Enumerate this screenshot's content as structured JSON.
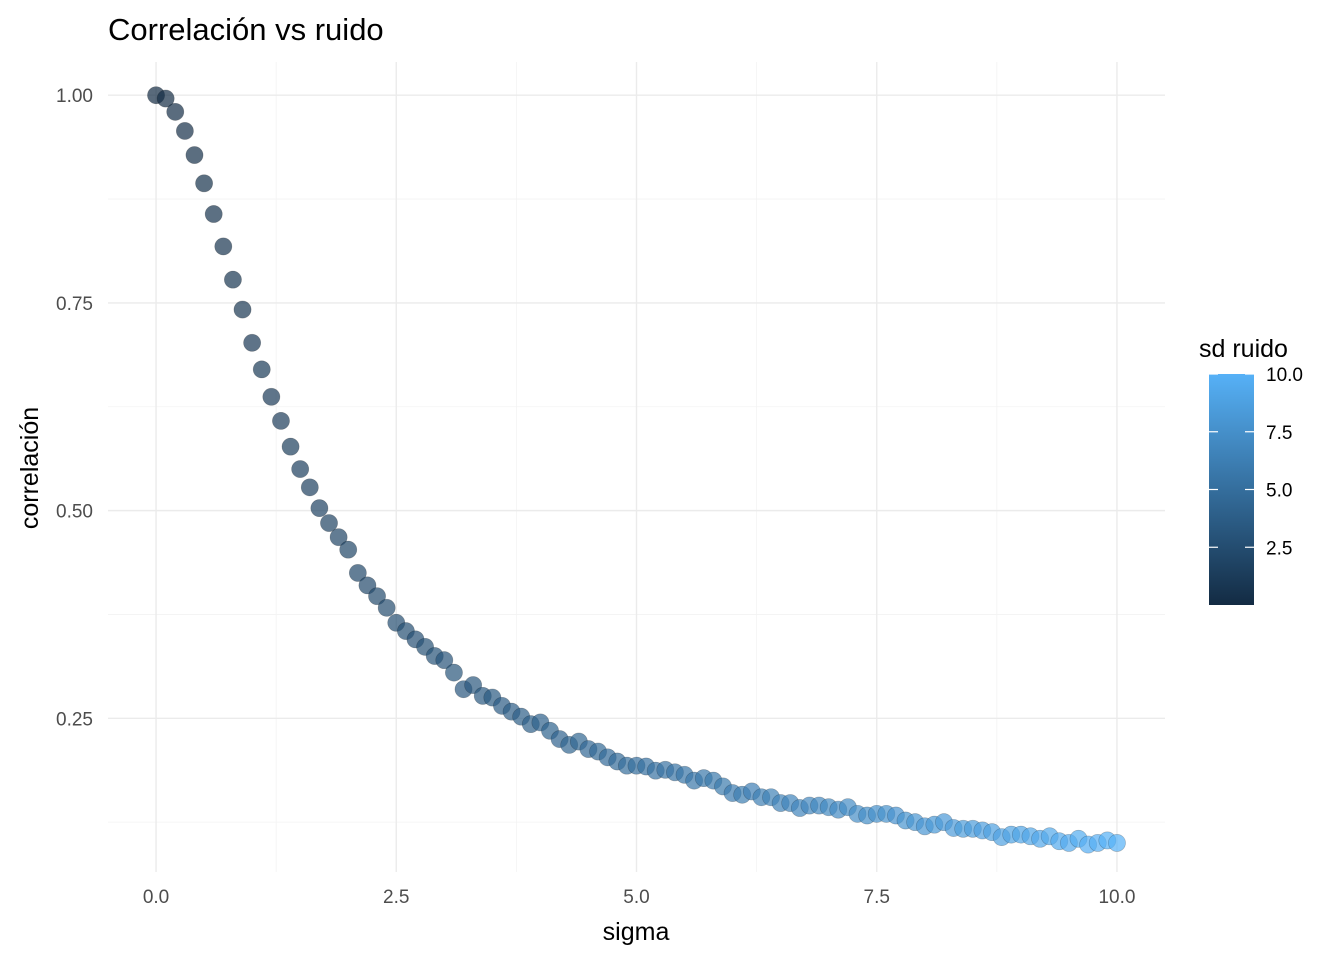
{
  "chart_data": {
    "type": "scatter",
    "title": "Correlación vs ruido",
    "xlabel": "sigma",
    "ylabel": "correlación",
    "xlim": [
      -0.5,
      10.5
    ],
    "ylim": [
      0.065,
      1.04
    ],
    "x_ticks": [
      0.0,
      2.5,
      5.0,
      7.5,
      10.0
    ],
    "x_tick_labels": [
      "0.0",
      "2.5",
      "5.0",
      "7.5",
      "10.0"
    ],
    "y_ticks": [
      0.25,
      0.5,
      0.75,
      1.0
    ],
    "y_tick_labels": [
      "0.25",
      "0.50",
      "0.75",
      "1.00"
    ],
    "grid": true,
    "legend": {
      "title": "sd ruido",
      "placement": "right",
      "type": "colorbar",
      "range": [
        0.0,
        10.0
      ],
      "ticks": [
        2.5,
        5.0,
        7.5,
        10.0
      ],
      "tick_labels": [
        "2.5",
        "5.0",
        "7.5",
        "10.0"
      ],
      "color_low": "#132B43",
      "color_high": "#56B1F7"
    },
    "point_alpha": 0.7,
    "x": [
      0.0,
      0.1,
      0.2,
      0.3,
      0.4,
      0.5,
      0.6,
      0.7,
      0.8,
      0.9,
      1.0,
      1.1,
      1.2,
      1.3,
      1.4,
      1.5,
      1.6,
      1.7,
      1.8,
      1.9,
      2.0,
      2.1,
      2.2,
      2.3,
      2.4,
      2.5,
      2.6,
      2.7,
      2.8,
      2.9,
      3.0,
      3.1,
      3.2,
      3.3,
      3.4,
      3.5,
      3.6,
      3.7,
      3.8,
      3.9,
      4.0,
      4.1,
      4.2,
      4.3,
      4.4,
      4.5,
      4.6,
      4.7,
      4.8,
      4.9,
      5.0,
      5.1,
      5.2,
      5.3,
      5.4,
      5.5,
      5.6,
      5.7,
      5.8,
      5.9,
      6.0,
      6.1,
      6.2,
      6.3,
      6.4,
      6.5,
      6.6,
      6.7,
      6.8,
      6.9,
      7.0,
      7.1,
      7.2,
      7.3,
      7.4,
      7.5,
      7.6,
      7.7,
      7.8,
      7.9,
      8.0,
      8.1,
      8.2,
      8.3,
      8.4,
      8.5,
      8.6,
      8.7,
      8.8,
      8.9,
      9.0,
      9.1,
      9.2,
      9.3,
      9.4,
      9.5,
      9.6,
      9.7,
      9.8,
      9.9,
      10.0
    ],
    "y": [
      1.0,
      0.996,
      0.98,
      0.957,
      0.928,
      0.894,
      0.857,
      0.818,
      0.778,
      0.742,
      0.702,
      0.67,
      0.637,
      0.608,
      0.577,
      0.55,
      0.528,
      0.503,
      0.485,
      0.468,
      0.453,
      0.425,
      0.41,
      0.397,
      0.383,
      0.365,
      0.355,
      0.345,
      0.336,
      0.325,
      0.32,
      0.305,
      0.285,
      0.29,
      0.277,
      0.275,
      0.265,
      0.258,
      0.252,
      0.243,
      0.245,
      0.235,
      0.225,
      0.218,
      0.222,
      0.213,
      0.21,
      0.203,
      0.198,
      0.193,
      0.193,
      0.192,
      0.187,
      0.188,
      0.185,
      0.182,
      0.175,
      0.178,
      0.175,
      0.168,
      0.16,
      0.158,
      0.162,
      0.155,
      0.155,
      0.148,
      0.148,
      0.142,
      0.145,
      0.145,
      0.143,
      0.14,
      0.143,
      0.135,
      0.133,
      0.135,
      0.135,
      0.133,
      0.127,
      0.125,
      0.12,
      0.122,
      0.125,
      0.118,
      0.117,
      0.117,
      0.115,
      0.113,
      0.107,
      0.11,
      0.11,
      0.108,
      0.105,
      0.108,
      0.102,
      0.1,
      0.105,
      0.098,
      0.1,
      0.103,
      0.1
    ]
  }
}
